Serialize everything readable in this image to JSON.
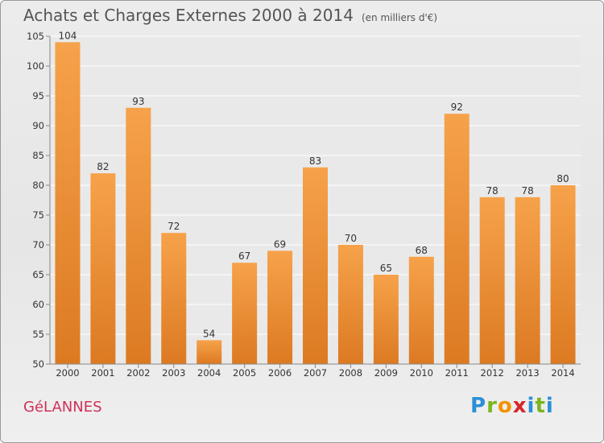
{
  "title": "Achats et Charges Externes 2000 à 2014",
  "unit": "(en milliers d'€)",
  "commune": "GéLANNES",
  "logo": "Proxiti",
  "chart_data": {
    "type": "bar",
    "categories": [
      "2000",
      "2001",
      "2002",
      "2003",
      "2004",
      "2005",
      "2006",
      "2007",
      "2008",
      "2009",
      "2010",
      "2011",
      "2012",
      "2013",
      "2014"
    ],
    "values": [
      104,
      82,
      93,
      72,
      54,
      67,
      69,
      83,
      70,
      65,
      68,
      92,
      78,
      78,
      80
    ],
    "ylim": [
      50,
      105
    ],
    "yticks": [
      50,
      55,
      60,
      65,
      70,
      75,
      80,
      85,
      90,
      95,
      100,
      105
    ],
    "grid": true,
    "bar_color": "#f29a3c",
    "bar_color_dark": "#d97420"
  }
}
